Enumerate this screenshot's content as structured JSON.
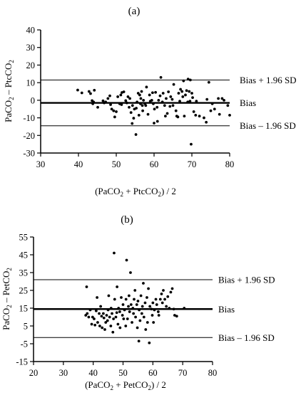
{
  "chart_data": [
    {
      "panel_label": "(a)",
      "type": "scatter",
      "xlabel": "(PaCO2 + PtcCO2) / 2",
      "ylabel": "PaCO2 - PtcCO2",
      "xlabel_parts": [
        "(PaCO",
        "2",
        " + PtcCO",
        "2",
        ") / 2"
      ],
      "ylabel_parts": [
        "PaCO",
        "2",
        " – PtcCO",
        "2"
      ],
      "xlim": [
        30,
        80
      ],
      "ylim": [
        -30,
        40
      ],
      "x_ticks": [
        30,
        40,
        50,
        60,
        70,
        80
      ],
      "y_ticks": [
        -30,
        -20,
        -10,
        0,
        10,
        20,
        30,
        40
      ],
      "reference_lines": [
        {
          "label": "Bias + 1.96 SD",
          "y": 11.5,
          "bold": false
        },
        {
          "label": "Bias",
          "y": -1.5,
          "bold": true
        },
        {
          "label": "Bias – 1.96 SD",
          "y": -14.5,
          "bold": false
        }
      ],
      "points": [
        [
          39.8,
          5.8
        ],
        [
          40.9,
          4.2
        ],
        [
          42.8,
          5.0
        ],
        [
          43.2,
          3.8
        ],
        [
          43.6,
          -0.2
        ],
        [
          43.8,
          -2.0
        ],
        [
          44.2,
          5.7
        ],
        [
          44.0,
          -1.0
        ],
        [
          45.1,
          -4.0
        ],
        [
          46.5,
          -0.3
        ],
        [
          46.8,
          -1.5
        ],
        [
          47.2,
          -1.0
        ],
        [
          47.8,
          1.0
        ],
        [
          48.3,
          2.5
        ],
        [
          48.5,
          -2.5
        ],
        [
          48.8,
          -5.0
        ],
        [
          49.3,
          -6.0
        ],
        [
          49.6,
          -9.5
        ],
        [
          50.0,
          -6.5
        ],
        [
          50.4,
          2.0
        ],
        [
          50.9,
          -2.0
        ],
        [
          51.2,
          3.0
        ],
        [
          51.4,
          -2.5
        ],
        [
          51.5,
          4.4
        ],
        [
          52.0,
          4.8
        ],
        [
          52.5,
          -0.2
        ],
        [
          52.8,
          -1.5
        ],
        [
          53.1,
          2.0
        ],
        [
          53.4,
          -4.0
        ],
        [
          53.6,
          1.0
        ],
        [
          53.9,
          -7.0
        ],
        [
          54.2,
          -13.2
        ],
        [
          54.3,
          -3.0
        ],
        [
          54.6,
          -10.2
        ],
        [
          54.8,
          -5.0
        ],
        [
          55.2,
          -19.5
        ],
        [
          55.3,
          -4.5
        ],
        [
          55.5,
          -1.0
        ],
        [
          55.8,
          4.0
        ],
        [
          56.0,
          -8.5
        ],
        [
          56.2,
          3.0
        ],
        [
          56.4,
          -2.0
        ],
        [
          56.5,
          1.0
        ],
        [
          56.7,
          5.0
        ],
        [
          56.9,
          -3.0
        ],
        [
          57.0,
          -6.0
        ],
        [
          57.2,
          0.0
        ],
        [
          57.6,
          -2.0
        ],
        [
          57.8,
          -3.0
        ],
        [
          58.0,
          7.5
        ],
        [
          58.4,
          -8.0
        ],
        [
          58.8,
          3.0
        ],
        [
          59.0,
          -0.5
        ],
        [
          59.4,
          0.0
        ],
        [
          59.6,
          4.3
        ],
        [
          59.8,
          -2.0
        ],
        [
          60.0,
          -13.0
        ],
        [
          60.1,
          -5.0
        ],
        [
          60.4,
          4.5
        ],
        [
          60.8,
          -4.0
        ],
        [
          60.9,
          -12.0
        ],
        [
          61.2,
          0.0
        ],
        [
          61.6,
          2.5
        ],
        [
          61.8,
          13.0
        ],
        [
          62.2,
          -1.0
        ],
        [
          62.4,
          4.0
        ],
        [
          62.8,
          -3.0
        ],
        [
          63.0,
          -9.0
        ],
        [
          63.2,
          1.0
        ],
        [
          63.5,
          -7.5
        ],
        [
          63.8,
          4.8
        ],
        [
          64.2,
          -3.5
        ],
        [
          64.4,
          2.0
        ],
        [
          64.8,
          0.5
        ],
        [
          65.0,
          -3.0
        ],
        [
          65.2,
          9.0
        ],
        [
          65.8,
          -6.0
        ],
        [
          66.0,
          -9.0
        ],
        [
          66.3,
          -9.5
        ],
        [
          66.5,
          4.0
        ],
        [
          66.8,
          -0.5
        ],
        [
          67.0,
          6.2
        ],
        [
          67.4,
          5.0
        ],
        [
          67.6,
          2.0
        ],
        [
          67.8,
          11.0
        ],
        [
          68.0,
          -9.0
        ],
        [
          68.3,
          3.0
        ],
        [
          68.6,
          5.5
        ],
        [
          68.9,
          -1.0
        ],
        [
          69.0,
          12.0
        ],
        [
          69.3,
          5.0
        ],
        [
          69.5,
          -0.5
        ],
        [
          69.6,
          11.5
        ],
        [
          69.8,
          -25.0
        ],
        [
          70.0,
          4.0
        ],
        [
          70.2,
          1.5
        ],
        [
          70.5,
          -6.5
        ],
        [
          71.0,
          -8.5
        ],
        [
          71.2,
          -0.5
        ],
        [
          72.0,
          -9.0
        ],
        [
          73.2,
          -10.0
        ],
        [
          73.8,
          -12.5
        ],
        [
          74.0,
          0.5
        ],
        [
          74.5,
          10.2
        ],
        [
          75.0,
          -6.0
        ],
        [
          75.4,
          -2.0
        ],
        [
          76.0,
          -5.0
        ],
        [
          77.0,
          1.0
        ],
        [
          77.3,
          -8.0
        ],
        [
          78.0,
          1.0
        ],
        [
          78.5,
          0.0
        ],
        [
          79.5,
          -3.0
        ],
        [
          80.0,
          -8.5
        ]
      ]
    },
    {
      "panel_label": "(b)",
      "type": "scatter",
      "xlabel": "(PaCO2 + PetCO2) / 2",
      "ylabel": "PaCO2 - PetCO2",
      "xlabel_parts": [
        "(PaCO",
        "2",
        " + PetCO",
        "2",
        ") / 2"
      ],
      "ylabel_parts": [
        "PaCO",
        "2",
        " – PetCO",
        "2"
      ],
      "xlim": [
        20,
        80
      ],
      "ylim": [
        -15,
        55
      ],
      "x_ticks": [
        20,
        30,
        40,
        50,
        60,
        70,
        80
      ],
      "y_ticks": [
        -15,
        -5,
        5,
        15,
        25,
        35,
        45,
        55
      ],
      "reference_lines": [
        {
          "label": "Bias + 1.96 SD",
          "y": 31,
          "bold": false
        },
        {
          "label": "Bias",
          "y": 14.5,
          "bold": true
        },
        {
          "label": "Bias – 1.96 SD",
          "y": -1.5,
          "bold": false
        }
      ],
      "points": [
        [
          37.5,
          11.0
        ],
        [
          37.8,
          27.0
        ],
        [
          38.0,
          12.0
        ],
        [
          38.5,
          10.0
        ],
        [
          39.0,
          14.0
        ],
        [
          39.5,
          6.0
        ],
        [
          39.8,
          10.0
        ],
        [
          40.3,
          9.0
        ],
        [
          40.6,
          5.5
        ],
        [
          41.0,
          13.5
        ],
        [
          41.3,
          21.0
        ],
        [
          41.5,
          7.0
        ],
        [
          42.0,
          12.0
        ],
        [
          42.2,
          5.0
        ],
        [
          42.5,
          16.0
        ],
        [
          42.8,
          10.5
        ],
        [
          43.0,
          4.0
        ],
        [
          43.4,
          12.0
        ],
        [
          43.6,
          9.5
        ],
        [
          43.9,
          3.0
        ],
        [
          44.2,
          7.0
        ],
        [
          44.5,
          11.0
        ],
        [
          44.8,
          8.0
        ],
        [
          45.0,
          14.0
        ],
        [
          45.2,
          22.0
        ],
        [
          45.5,
          10.0
        ],
        [
          45.9,
          5.0
        ],
        [
          46.0,
          15.0
        ],
        [
          46.3,
          12.0
        ],
        [
          46.6,
          1.5
        ],
        [
          46.8,
          9.0
        ],
        [
          47.0,
          46.0
        ],
        [
          47.2,
          20.0
        ],
        [
          47.6,
          10.0
        ],
        [
          47.9,
          12.5
        ],
        [
          48.0,
          27.0
        ],
        [
          48.3,
          6.0
        ],
        [
          48.5,
          15.0
        ],
        [
          48.9,
          13.0
        ],
        [
          49.0,
          4.0
        ],
        [
          49.4,
          21.0
        ],
        [
          49.8,
          11.0
        ],
        [
          50.0,
          17.0
        ],
        [
          50.2,
          9.0
        ],
        [
          50.5,
          14.0
        ],
        [
          50.9,
          5.0
        ],
        [
          51.0,
          20.0
        ],
        [
          51.2,
          42.0
        ],
        [
          51.5,
          9.0
        ],
        [
          51.8,
          16.0
        ],
        [
          52.0,
          22.0
        ],
        [
          52.2,
          13.0
        ],
        [
          52.5,
          35.0
        ],
        [
          52.7,
          17.0
        ],
        [
          53.0,
          7.0
        ],
        [
          53.3,
          15.0
        ],
        [
          53.5,
          12.0
        ],
        [
          53.7,
          20.0
        ],
        [
          54.0,
          25.0
        ],
        [
          54.2,
          10.0
        ],
        [
          54.6,
          17.0
        ],
        [
          54.8,
          4.0
        ],
        [
          55.0,
          19.0
        ],
        [
          55.3,
          -3.5
        ],
        [
          55.4,
          14.0
        ],
        [
          55.7,
          8.0
        ],
        [
          56.0,
          22.0
        ],
        [
          56.3,
          12.0
        ],
        [
          56.5,
          16.0
        ],
        [
          56.8,
          29.0
        ],
        [
          57.0,
          10.0
        ],
        [
          57.4,
          18.0
        ],
        [
          57.6,
          3.0
        ],
        [
          58.0,
          21.0
        ],
        [
          58.2,
          7.0
        ],
        [
          58.5,
          26.0
        ],
        [
          58.8,
          -4.5
        ],
        [
          59.0,
          16.0
        ],
        [
          59.5,
          14.5
        ],
        [
          59.8,
          11.0
        ],
        [
          60.0,
          18.0
        ],
        [
          60.2,
          7.0
        ],
        [
          60.5,
          14.0
        ],
        [
          61.0,
          20.0
        ],
        [
          61.3,
          17.0
        ],
        [
          61.8,
          13.0
        ],
        [
          62.0,
          11.0
        ],
        [
          62.5,
          20.0
        ],
        [
          62.9,
          23.0
        ],
        [
          63.2,
          18.0
        ],
        [
          63.5,
          25.0
        ],
        [
          64.0,
          20.0
        ],
        [
          64.5,
          16.0
        ],
        [
          65.0,
          21.5
        ],
        [
          65.5,
          15.0
        ],
        [
          66.0,
          24.0
        ],
        [
          66.5,
          26.0
        ],
        [
          67.0,
          14.5
        ],
        [
          67.3,
          11.0
        ],
        [
          68.0,
          10.5
        ],
        [
          70.5,
          15.0
        ]
      ]
    }
  ]
}
